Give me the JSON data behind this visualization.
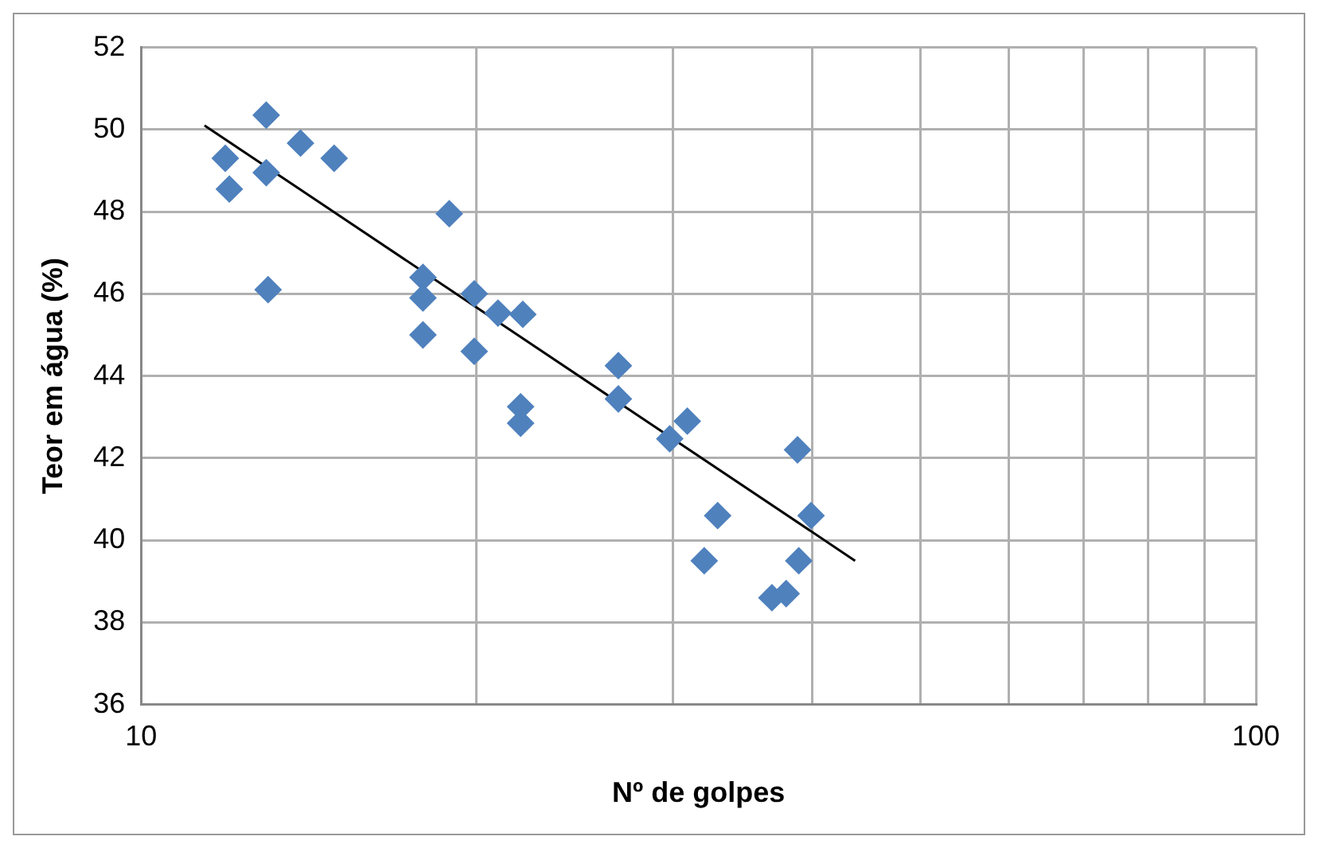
{
  "chart_data": {
    "type": "scatter",
    "xlabel": "Nº de golpes",
    "ylabel": "Teor em água (%)",
    "log": "x",
    "grid": true,
    "legend": false,
    "marker": "diamond",
    "xlim": [
      10,
      100
    ],
    "xticks": [
      10,
      {
        "value": 20,
        "label": null
      },
      {
        "value": 30,
        "label": null
      },
      {
        "value": 40,
        "label": null
      },
      {
        "value": 50,
        "label": null
      },
      {
        "value": 60,
        "label": null
      },
      {
        "value": 70,
        "label": null
      },
      {
        "value": 80,
        "label": null
      },
      {
        "value": 90,
        "label": null
      },
      100
    ],
    "ylim": [
      36,
      52
    ],
    "yticks": [
      36,
      38,
      40,
      42,
      44,
      46,
      48,
      50,
      52
    ],
    "series": [
      {
        "color": "#4f81bd",
        "x": [
          11.9,
          12.0,
          12.95,
          12.95,
          13.0,
          13.9,
          14.9,
          17.9,
          17.9,
          17.9,
          18.9,
          19.9,
          19.9,
          20.9,
          22.0,
          21.9,
          21.9,
          26.8,
          26.8,
          29.8,
          30.9,
          32.9,
          32.0,
          36.8,
          37.9,
          38.8,
          38.9,
          39.9
        ],
        "values": [
          49.3,
          48.55,
          50.35,
          48.95,
          46.1,
          49.67,
          49.3,
          46.4,
          45.9,
          45.0,
          47.95,
          46.0,
          44.6,
          45.53,
          45.5,
          43.25,
          42.85,
          44.25,
          43.44,
          42.47,
          42.9,
          40.6,
          39.5,
          38.6,
          38.7,
          42.2,
          39.5,
          40.6
        ]
      },
      {
        "type": "line",
        "color": "#000000",
        "marker": "none",
        "x": [
          11.4,
          43.7
        ],
        "values": [
          50.1,
          39.5
        ]
      }
    ]
  }
}
